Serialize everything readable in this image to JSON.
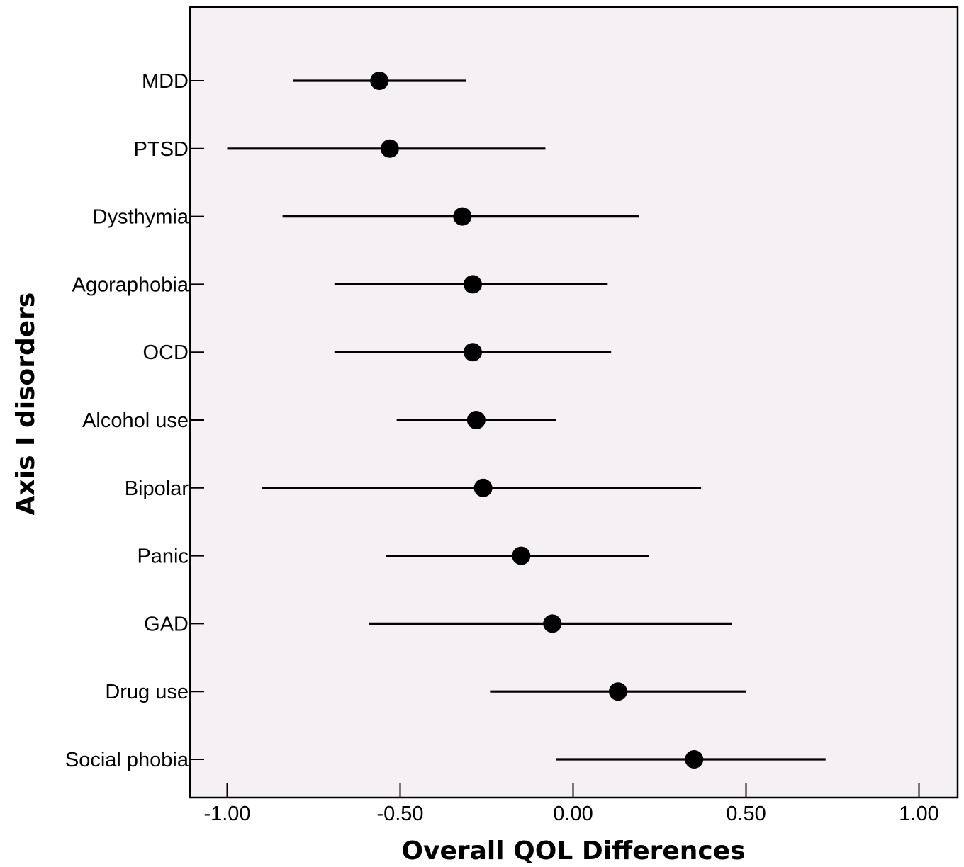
{
  "chart_data": {
    "type": "forest",
    "xlabel": "Overall QOL Differences",
    "ylabel": "Axis Ⅰ disorders",
    "xlim": [
      -1.1,
      1.12
    ],
    "xticks": [
      -1.0,
      -0.5,
      0.0,
      0.5,
      1.0
    ],
    "xtick_labels": [
      "-1.00",
      "-0.50",
      "0.00",
      "0.50",
      "1.00"
    ],
    "grid": false,
    "plot_background": "#f5f0f4",
    "marker_color": "#000000",
    "series": [
      {
        "categories": [
          "MDD",
          "PTSD",
          "Dysthymia",
          "Agoraphobia",
          "OCD",
          "Alcohol use",
          "Bipolar",
          "Panic",
          "GAD",
          "Drug use",
          "Social phobia"
        ],
        "estimate": [
          -0.56,
          -0.53,
          -0.32,
          -0.29,
          -0.29,
          -0.28,
          -0.26,
          -0.15,
          -0.06,
          0.13,
          0.35
        ],
        "ci_low": [
          -0.81,
          -1.0,
          -0.84,
          -0.69,
          -0.69,
          -0.51,
          -0.9,
          -0.54,
          -0.59,
          -0.24,
          -0.05
        ],
        "ci_high": [
          -0.31,
          -0.08,
          0.19,
          0.1,
          0.11,
          -0.05,
          0.37,
          0.22,
          0.46,
          0.5,
          0.73
        ]
      }
    ]
  }
}
